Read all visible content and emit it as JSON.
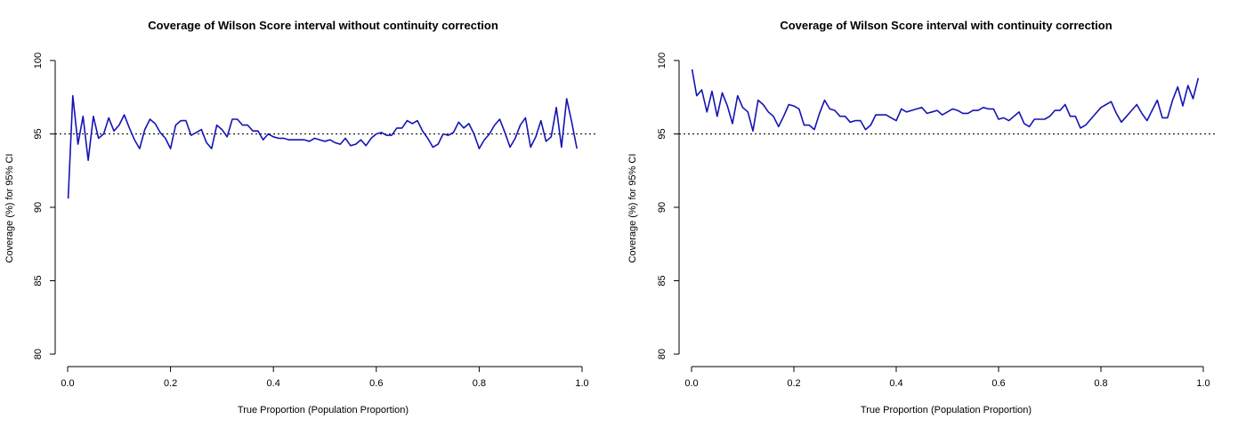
{
  "colors": {
    "series": "#1414b4",
    "axis": "#000000"
  },
  "chart_data": [
    {
      "type": "line",
      "title": "Coverage of Wilson Score interval without continuity correction",
      "xlabel": "True Proportion (Population Proportion)",
      "ylabel": "Coverage (%) for 95% CI",
      "xlim": [
        0,
        1
      ],
      "ylim": [
        80,
        100
      ],
      "xticks": [
        "0.0",
        "0.2",
        "0.4",
        "0.6",
        "0.8",
        "1.0"
      ],
      "yticks": [
        "80",
        "85",
        "90",
        "95",
        "100"
      ],
      "reference_line": {
        "y": 95,
        "style": "dotted"
      },
      "grid": false,
      "series": [
        {
          "x": [
            0.001,
            0.01,
            0.02,
            0.03,
            0.04,
            0.05,
            0.06,
            0.07,
            0.08,
            0.09,
            0.1,
            0.11,
            0.12,
            0.13,
            0.14,
            0.15,
            0.16,
            0.17,
            0.18,
            0.19,
            0.2,
            0.21,
            0.22,
            0.23,
            0.24,
            0.25,
            0.26,
            0.27,
            0.28,
            0.29,
            0.3,
            0.31,
            0.32,
            0.33,
            0.34,
            0.35,
            0.36,
            0.37,
            0.38,
            0.39,
            0.4,
            0.41,
            0.42,
            0.43,
            0.44,
            0.45,
            0.46,
            0.47,
            0.48,
            0.49,
            0.5,
            0.51,
            0.52,
            0.53,
            0.54,
            0.55,
            0.56,
            0.57,
            0.58,
            0.59,
            0.6,
            0.61,
            0.62,
            0.63,
            0.64,
            0.65,
            0.66,
            0.67,
            0.68,
            0.69,
            0.7,
            0.71,
            0.72,
            0.73,
            0.74,
            0.75,
            0.76,
            0.77,
            0.78,
            0.79,
            0.8,
            0.81,
            0.82,
            0.83,
            0.84,
            0.85,
            0.86,
            0.87,
            0.88,
            0.89,
            0.9,
            0.91,
            0.92,
            0.93,
            0.94,
            0.95,
            0.96,
            0.97,
            0.98,
            0.99
          ],
          "y": [
            90.6,
            97.6,
            94.3,
            96.2,
            93.2,
            96.2,
            94.7,
            95.0,
            96.1,
            95.2,
            95.6,
            96.3,
            95.4,
            94.6,
            94.0,
            95.3,
            96.0,
            95.7,
            95.1,
            94.7,
            94.0,
            95.6,
            95.9,
            95.9,
            94.9,
            95.1,
            95.3,
            94.4,
            94.0,
            95.6,
            95.3,
            94.8,
            96.0,
            96.0,
            95.6,
            95.6,
            95.2,
            95.2,
            94.6,
            95.0,
            94.8,
            94.7,
            94.7,
            94.6,
            94.6,
            94.6,
            94.6,
            94.5,
            94.7,
            94.6,
            94.5,
            94.6,
            94.4,
            94.3,
            94.7,
            94.2,
            94.3,
            94.6,
            94.2,
            94.7,
            95.0,
            95.1,
            94.9,
            94.9,
            95.4,
            95.4,
            95.9,
            95.7,
            95.9,
            95.2,
            94.7,
            94.1,
            94.3,
            95.0,
            94.9,
            95.1,
            95.8,
            95.4,
            95.7,
            95.0,
            94.0,
            94.6,
            95.0,
            95.6,
            96.0,
            95.1,
            94.1,
            94.7,
            95.6,
            96.1,
            94.1,
            94.8,
            95.9,
            94.5,
            94.8,
            96.8,
            94.1,
            97.4,
            95.8,
            94.0
          ]
        }
      ]
    },
    {
      "type": "line",
      "title": "Coverage of Wilson Score interval with continuity correction",
      "xlabel": "True Proportion (Population Proportion)",
      "ylabel": "Coverage (%) for 95% CI",
      "xlim": [
        0,
        1
      ],
      "ylim": [
        80,
        100
      ],
      "xticks": [
        "0.0",
        "0.2",
        "0.4",
        "0.6",
        "0.8",
        "1.0"
      ],
      "yticks": [
        "80",
        "85",
        "90",
        "95",
        "100"
      ],
      "reference_line": {
        "y": 95,
        "style": "dotted"
      },
      "grid": false,
      "series": [
        {
          "x": [
            0.001,
            0.01,
            0.02,
            0.03,
            0.04,
            0.05,
            0.06,
            0.07,
            0.08,
            0.09,
            0.1,
            0.11,
            0.12,
            0.13,
            0.14,
            0.15,
            0.16,
            0.17,
            0.18,
            0.19,
            0.2,
            0.21,
            0.22,
            0.23,
            0.24,
            0.25,
            0.26,
            0.27,
            0.28,
            0.29,
            0.3,
            0.31,
            0.32,
            0.33,
            0.34,
            0.35,
            0.36,
            0.37,
            0.38,
            0.39,
            0.4,
            0.41,
            0.42,
            0.43,
            0.44,
            0.45,
            0.46,
            0.47,
            0.48,
            0.49,
            0.5,
            0.51,
            0.52,
            0.53,
            0.54,
            0.55,
            0.56,
            0.57,
            0.58,
            0.59,
            0.6,
            0.61,
            0.62,
            0.63,
            0.64,
            0.65,
            0.66,
            0.67,
            0.68,
            0.69,
            0.7,
            0.71,
            0.72,
            0.73,
            0.74,
            0.75,
            0.76,
            0.77,
            0.78,
            0.79,
            0.8,
            0.81,
            0.82,
            0.83,
            0.84,
            0.85,
            0.86,
            0.87,
            0.88,
            0.89,
            0.9,
            0.91,
            0.92,
            0.93,
            0.94,
            0.95,
            0.96,
            0.97,
            0.98,
            0.99
          ],
          "y": [
            99.4,
            97.6,
            98.0,
            96.5,
            97.9,
            96.2,
            97.8,
            96.9,
            95.7,
            97.6,
            96.8,
            96.5,
            95.2,
            97.3,
            97.0,
            96.5,
            96.2,
            95.5,
            96.2,
            97.0,
            96.9,
            96.7,
            95.6,
            95.6,
            95.3,
            96.4,
            97.3,
            96.7,
            96.6,
            96.2,
            96.2,
            95.8,
            95.9,
            95.9,
            95.3,
            95.6,
            96.3,
            96.3,
            96.3,
            96.1,
            95.9,
            96.7,
            96.5,
            96.6,
            96.7,
            96.8,
            96.4,
            96.5,
            96.6,
            96.3,
            96.5,
            96.7,
            96.6,
            96.4,
            96.4,
            96.6,
            96.6,
            96.8,
            96.7,
            96.7,
            96.0,
            96.1,
            95.9,
            96.2,
            96.5,
            95.7,
            95.5,
            96.0,
            96.0,
            96.0,
            96.2,
            96.6,
            96.6,
            97.0,
            96.2,
            96.2,
            95.4,
            95.6,
            96.0,
            96.4,
            96.8,
            97.0,
            97.2,
            96.4,
            95.8,
            96.2,
            96.6,
            97.0,
            96.4,
            95.9,
            96.6,
            97.3,
            96.1,
            96.1,
            97.3,
            98.2,
            96.9,
            98.3,
            97.4,
            98.8
          ]
        }
      ]
    }
  ]
}
